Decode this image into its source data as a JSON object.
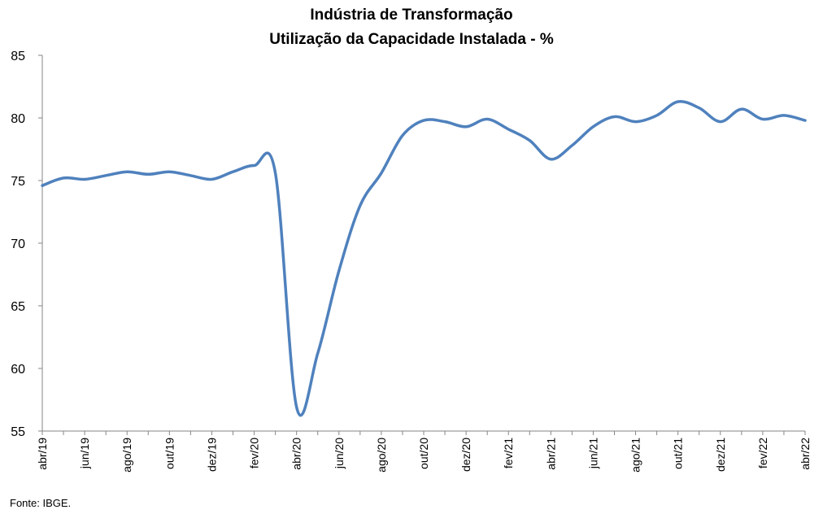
{
  "chart_data": {
    "type": "line",
    "title": "Indústria de Transformação",
    "subtitle": "Utilização da Capacidade Instalada - %",
    "xlabel": "",
    "ylabel": "",
    "ylim": [
      55,
      85
    ],
    "yticks": [
      55,
      60,
      65,
      70,
      75,
      80,
      85
    ],
    "grid": false,
    "legend": "none",
    "line_color": "#4F81BD",
    "x": [
      "abr/19",
      "mai/19",
      "jun/19",
      "jul/19",
      "ago/19",
      "set/19",
      "out/19",
      "nov/19",
      "dez/19",
      "jan/20",
      "fev/20",
      "mar/20",
      "abr/20",
      "mai/20",
      "jun/20",
      "jul/20",
      "ago/20",
      "set/20",
      "out/20",
      "nov/20",
      "dez/20",
      "jan/21",
      "fev/21",
      "mar/21",
      "abr/21",
      "mai/21",
      "jun/21",
      "jul/21",
      "ago/21",
      "set/21",
      "out/21",
      "nov/21",
      "dez/21",
      "jan/22",
      "fev/22",
      "mar/22",
      "abr/22"
    ],
    "x_tick_labels": [
      "abr/19",
      "jun/19",
      "ago/19",
      "out/19",
      "dez/19",
      "fev/20",
      "abr/20",
      "jun/20",
      "ago/20",
      "out/20",
      "dez/20",
      "fev/21",
      "abr/21",
      "jun/21",
      "ago/21",
      "out/21",
      "dez/21",
      "fev/22",
      "abr/22"
    ],
    "series": [
      {
        "values": [
          74.6,
          75.2,
          75.1,
          75.4,
          75.7,
          75.5,
          75.7,
          75.4,
          75.1,
          75.7,
          76.2,
          75.6,
          56.9,
          61.2,
          67.8,
          73.0,
          75.6,
          78.6,
          79.8,
          79.7,
          79.3,
          79.9,
          79.1,
          78.2,
          76.7,
          77.8,
          79.3,
          80.1,
          79.7,
          80.2,
          81.3,
          80.8,
          79.7,
          80.7,
          79.9,
          80.2,
          79.8
        ]
      }
    ]
  },
  "source": "Fonte: IBGE."
}
